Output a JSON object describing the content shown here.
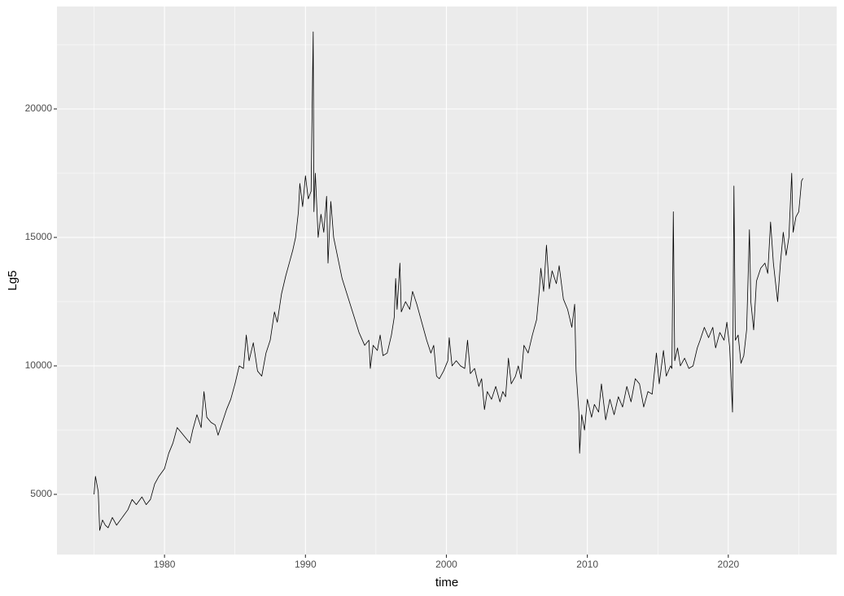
{
  "chart_data": {
    "type": "line",
    "xlabel": "time",
    "ylabel": "Lg5",
    "color": "#000000",
    "xlim": [
      1972.37,
      2027.69
    ],
    "ylim": [
      2658,
      23987
    ],
    "xticks": [
      1980,
      1990,
      2000,
      2010,
      2020
    ],
    "yticks": [
      5000,
      10000,
      15000,
      20000
    ],
    "xminor": [
      1975,
      1985,
      1995,
      2005,
      2015,
      2025
    ],
    "yminor": [
      2500,
      7500,
      12500,
      17500,
      22500
    ],
    "grid": true,
    "x": [
      1975.0,
      1975.1,
      1975.3,
      1975.4,
      1975.6,
      1975.8,
      1976.0,
      1976.3,
      1976.6,
      1977.0,
      1977.4,
      1977.7,
      1978.0,
      1978.4,
      1978.7,
      1979.0,
      1979.3,
      1979.6,
      1980.0,
      1980.3,
      1980.6,
      1980.9,
      1981.2,
      1981.5,
      1981.8,
      1982.0,
      1982.3,
      1982.6,
      1982.8,
      1983.0,
      1983.3,
      1983.6,
      1983.8,
      1984.1,
      1984.4,
      1984.7,
      1985.0,
      1985.3,
      1985.6,
      1985.8,
      1986.0,
      1986.3,
      1986.6,
      1986.9,
      1987.2,
      1987.5,
      1987.8,
      1988.0,
      1988.3,
      1988.6,
      1988.9,
      1989.1,
      1989.3,
      1989.5,
      1989.6,
      1989.8,
      1990.0,
      1990.2,
      1990.4,
      1990.5,
      1990.55,
      1990.6,
      1990.7,
      1990.9,
      1991.1,
      1991.3,
      1991.5,
      1991.6,
      1991.8,
      1992.0,
      1992.3,
      1992.6,
      1993.0,
      1993.4,
      1993.8,
      1994.2,
      1994.5,
      1994.6,
      1994.8,
      1995.1,
      1995.3,
      1995.5,
      1995.8,
      1996.1,
      1996.3,
      1996.4,
      1996.5,
      1996.7,
      1996.8,
      1997.1,
      1997.4,
      1997.6,
      1997.9,
      1998.2,
      1998.6,
      1998.9,
      1999.1,
      1999.3,
      1999.5,
      1999.8,
      2000.1,
      2000.2,
      2000.4,
      2000.7,
      2001.0,
      2001.3,
      2001.5,
      2001.7,
      2002.0,
      2002.3,
      2002.5,
      2002.7,
      2002.9,
      2003.2,
      2003.5,
      2003.8,
      2004.0,
      2004.2,
      2004.4,
      2004.6,
      2004.9,
      2005.1,
      2005.3,
      2005.5,
      2005.8,
      2006.1,
      2006.4,
      2006.6,
      2006.7,
      2006.9,
      2007.1,
      2007.3,
      2007.5,
      2007.8,
      2008.0,
      2008.3,
      2008.6,
      2008.9,
      2009.1,
      2009.2,
      2009.4,
      2009.45,
      2009.6,
      2009.8,
      2010.0,
      2010.3,
      2010.5,
      2010.8,
      2011.0,
      2011.3,
      2011.6,
      2011.9,
      2012.2,
      2012.5,
      2012.8,
      2013.1,
      2013.4,
      2013.7,
      2014.0,
      2014.3,
      2014.6,
      2014.9,
      2015.1,
      2015.4,
      2015.6,
      2015.9,
      2016.0,
      2016.1,
      2016.2,
      2016.4,
      2016.6,
      2016.9,
      2017.2,
      2017.5,
      2017.8,
      2018.0,
      2018.3,
      2018.6,
      2018.9,
      2019.1,
      2019.4,
      2019.7,
      2019.9,
      2020.1,
      2020.3,
      2020.4,
      2020.5,
      2020.7,
      2020.9,
      2021.1,
      2021.3,
      2021.5,
      2021.6,
      2021.8,
      2022.0,
      2022.3,
      2022.6,
      2022.8,
      2023.0,
      2023.2,
      2023.5,
      2023.7,
      2023.9,
      2024.1,
      2024.3,
      2024.5,
      2024.6,
      2024.8,
      2025.0,
      2025.2,
      2025.3
    ],
    "values": [
      5000,
      5700,
      5100,
      3600,
      4000,
      3800,
      3700,
      4100,
      3800,
      4100,
      4400,
      4800,
      4600,
      4900,
      4600,
      4800,
      5400,
      5700,
      6000,
      6600,
      7000,
      7600,
      7400,
      7200,
      7000,
      7500,
      8100,
      7600,
      9000,
      8000,
      7800,
      7700,
      7300,
      7800,
      8300,
      8700,
      9300,
      10000,
      9900,
      11200,
      10200,
      10900,
      9800,
      9600,
      10500,
      11000,
      12100,
      11700,
      12800,
      13500,
      14100,
      14500,
      15000,
      16000,
      17100,
      16200,
      17400,
      16500,
      16800,
      21000,
      23000,
      16000,
      17500,
      15000,
      15900,
      15200,
      16600,
      14000,
      16400,
      15000,
      14200,
      13400,
      12700,
      12000,
      11300,
      10800,
      11000,
      9900,
      10800,
      10600,
      11200,
      10400,
      10500,
      11200,
      11900,
      13400,
      12200,
      14000,
      12100,
      12500,
      12200,
      12900,
      12400,
      11800,
      11000,
      10500,
      10800,
      9600,
      9500,
      9800,
      10200,
      11100,
      10000,
      10200,
      10000,
      9900,
      11000,
      9700,
      9900,
      9200,
      9500,
      8300,
      9000,
      8700,
      9200,
      8600,
      9000,
      8800,
      10300,
      9300,
      9600,
      10000,
      9500,
      10800,
      10500,
      11200,
      11800,
      13000,
      13800,
      12900,
      14700,
      13000,
      13700,
      13200,
      13900,
      12600,
      12200,
      11500,
      12400,
      9800,
      8200,
      6600,
      8100,
      7500,
      8700,
      8000,
      8500,
      8200,
      9300,
      7900,
      8700,
      8100,
      8800,
      8400,
      9200,
      8600,
      9500,
      9300,
      8400,
      9000,
      8900,
      10500,
      9300,
      10600,
      9600,
      10000,
      9900,
      16000,
      10200,
      10700,
      10000,
      10300,
      9900,
      10000,
      10700,
      11000,
      11500,
      11100,
      11500,
      10700,
      11300,
      11000,
      11700,
      10700,
      8200,
      17000,
      11000,
      11200,
      10100,
      10400,
      11400,
      15300,
      12500,
      11400,
      13300,
      13800,
      14000,
      13600,
      15600,
      14000,
      12500,
      14000,
      15200,
      14300,
      15000,
      17500,
      15200,
      15800,
      16000,
      17200,
      17300
    ]
  }
}
